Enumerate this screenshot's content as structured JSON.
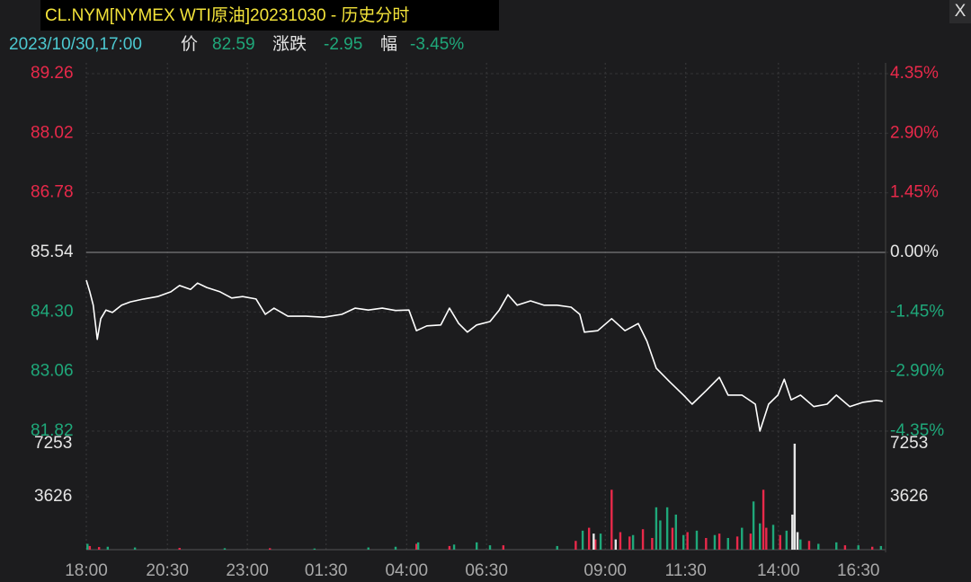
{
  "chart_data": {
    "type": "line",
    "title": "CL.NYM[NYMEX WTI原油]20231030 - 历史分时",
    "close_button": "X",
    "header": {
      "datetime": "2023/10/30,17:00",
      "price_label": "价",
      "price": 82.59,
      "change_label": "涨跌",
      "change": -2.95,
      "change_pct_label": "幅",
      "change_pct": {
        "value": -3.45,
        "label": "-3.45%"
      }
    },
    "color": "#ffffff",
    "up_color": "#e8294a",
    "down_color": "#1fa87a",
    "neutral_color": "#e6e6e6",
    "grid": true,
    "xlim": [
      0,
      1380
    ],
    "xticks": [
      {
        "value": 0,
        "label": "18:00"
      },
      {
        "value": 140,
        "label": "20:30"
      },
      {
        "value": 278,
        "label": "23:00"
      },
      {
        "value": 414,
        "label": "01:30"
      },
      {
        "value": 553,
        "label": "04:00"
      },
      {
        "value": 691,
        "label": "06:30"
      },
      {
        "value": 896,
        "label": "09:00"
      },
      {
        "value": 1035,
        "label": "11:30"
      },
      {
        "value": 1195,
        "label": "14:00"
      },
      {
        "value": 1333,
        "label": "16:30"
      }
    ],
    "ylim": [
      81.82,
      89.26
    ],
    "yticks": [
      89.26,
      88.02,
      86.78,
      85.54,
      {
        "value": 84.3,
        "label": "84.30"
      },
      83.06,
      81.82
    ],
    "y2lim": [
      -4.35,
      4.35
    ],
    "y2ticks": [
      {
        "value": 4.35,
        "label": "4.35%"
      },
      {
        "value": 2.9,
        "label": "2.90%"
      },
      {
        "value": 1.45,
        "label": "1.45%"
      },
      {
        "value": 0,
        "label": "0.00%"
      },
      {
        "value": -1.45,
        "label": "-1.45%"
      },
      {
        "value": -2.9,
        "label": "-2.90%"
      },
      {
        "value": -4.35,
        "label": "-4.35%"
      }
    ],
    "x": [
      0,
      6,
      12,
      19,
      25,
      34,
      45,
      61,
      76,
      99,
      123,
      146,
      161,
      180,
      192,
      208,
      231,
      251,
      270,
      293,
      309,
      324,
      348,
      379,
      410,
      441,
      464,
      487,
      511,
      534,
      557,
      570,
      588,
      612,
      627,
      643,
      658,
      674,
      697,
      713,
      728,
      744,
      767,
      790,
      813,
      837,
      852,
      860,
      883,
      907,
      930,
      953,
      968,
      984,
      1007,
      1031,
      1046,
      1070,
      1093,
      1108,
      1132,
      1155,
      1163,
      1178,
      1194,
      1205,
      1217,
      1233,
      1256,
      1279,
      1295,
      1318,
      1341,
      1364,
      1375
    ],
    "values": [
      84.96,
      84.72,
      84.44,
      83.73,
      84.16,
      84.34,
      84.29,
      84.44,
      84.51,
      84.57,
      84.62,
      84.72,
      84.85,
      84.77,
      84.9,
      84.81,
      84.72,
      84.59,
      84.62,
      84.57,
      84.25,
      84.38,
      84.21,
      84.21,
      84.19,
      84.25,
      84.38,
      84.34,
      84.38,
      84.33,
      84.34,
      83.91,
      84.01,
      84.03,
      84.38,
      84.06,
      83.88,
      84.03,
      84.1,
      84.34,
      84.66,
      84.44,
      84.53,
      84.44,
      84.44,
      84.4,
      84.25,
      83.88,
      83.91,
      84.16,
      83.91,
      84.06,
      83.69,
      83.13,
      82.85,
      82.57,
      82.38,
      82.66,
      82.94,
      82.57,
      82.57,
      82.38,
      81.82,
      82.38,
      82.57,
      82.9,
      82.47,
      82.57,
      82.33,
      82.38,
      82.57,
      82.33,
      82.42,
      82.46,
      82.44
    ],
    "volume": {
      "ylim": [
        0,
        7253
      ],
      "yticks": [
        7253,
        3626
      ],
      "groups": [
        {
          "color": "#e8294a",
          "x": [
            6,
            22,
            161,
            317,
            570,
            627,
            720,
            845,
            868,
            879,
            907,
            922,
            938,
            961,
            977,
            1012,
            1038,
            1070,
            1093,
            1124,
            1147,
            1169,
            1174,
            1198,
            1248,
            1310,
            1357
          ],
          "values": [
            250,
            180,
            120,
            100,
            400,
            250,
            300,
            600,
            1500,
            700,
            4100,
            1200,
            900,
            1400,
            800,
            1500,
            1200,
            800,
            1100,
            900,
            1100,
            4100,
            1500,
            1000,
            600,
            300,
            200
          ]
        },
        {
          "color": "#1fa87a",
          "x": [
            2,
            37,
            84,
            239,
            394,
            487,
            534,
            573,
            635,
            674,
            697,
            813,
            857,
            888,
            944,
            984,
            991,
            1003,
            1018,
            1031,
            1054,
            1085,
            1108,
            1132,
            1152,
            1163,
            1186,
            1209,
            1233,
            1264,
            1295,
            1333,
            1372
          ],
          "values": [
            400,
            200,
            150,
            100,
            80,
            150,
            200,
            500,
            350,
            500,
            300,
            250,
            1300,
            1100,
            1000,
            2900,
            2000,
            2900,
            2400,
            1000,
            1300,
            1000,
            800,
            1500,
            3300,
            1800,
            1700,
            1300,
            700,
            400,
            500,
            300,
            250
          ]
        },
        {
          "color": "#e6e6e6",
          "x": [
            876,
            914,
            1219,
            1223,
            1228
          ],
          "values": [
            1100,
            700,
            2400,
            7253,
            1200
          ]
        }
      ]
    }
  }
}
